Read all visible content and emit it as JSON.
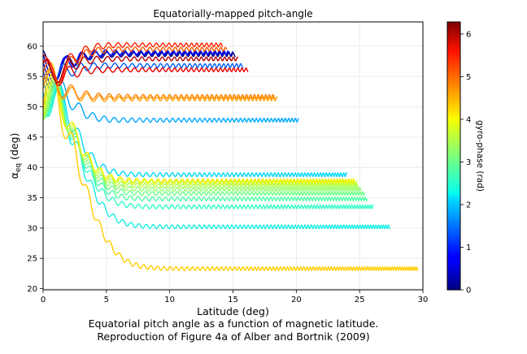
{
  "chart_data": {
    "type": "line",
    "title": "Equatorially-mapped pitch-angle",
    "xlabel": "Latitude (deg)",
    "ylabel_main": "α",
    "ylabel_sub": "eq",
    "ylabel_tail": " (deg)",
    "xlim": [
      0,
      30
    ],
    "ylim": [
      19.8,
      64
    ],
    "xticks": [
      "0",
      "5",
      "10",
      "15",
      "20",
      "25",
      "30"
    ],
    "yticks": [
      "20",
      "25",
      "30",
      "35",
      "40",
      "45",
      "50",
      "55",
      "60"
    ],
    "grid": true,
    "colorbar": {
      "label": "gyro-phase (rad)",
      "range": [
        0,
        6.283
      ],
      "ticks": [
        "0",
        "1",
        "2",
        "3",
        "4",
        "5",
        "6"
      ],
      "colormap": "jet"
    },
    "series": [
      {
        "phase": 0.1,
        "color": "#00007f",
        "x0": 0.0,
        "y0": 55.8,
        "yf": 58.6,
        "xend": 15.2,
        "amp": 0.3
      },
      {
        "phase": 0.5,
        "color": "#0000c8",
        "x0": 0.0,
        "y0": 55.5,
        "yf": 58.8,
        "xend": 15.0,
        "amp": 0.3
      },
      {
        "phase": 0.9,
        "color": "#0010ff",
        "x0": 0.0,
        "y0": 55.2,
        "yf": 59.0,
        "xend": 14.6,
        "amp": 0.3
      },
      {
        "phase": 1.25,
        "color": "#0060ff",
        "x0": 0.0,
        "y0": 54.9,
        "yf": 56.8,
        "xend": 15.8,
        "amp": 0.3
      },
      {
        "phase": 1.6,
        "color": "#00a8ff",
        "x0": 0.0,
        "y0": 54.5,
        "yf": 47.8,
        "xend": 20.2,
        "amp": 0.3
      },
      {
        "phase": 1.9,
        "color": "#00d8f8",
        "x0": 0.0,
        "y0": 54.2,
        "yf": 38.8,
        "xend": 24.0,
        "amp": 0.3
      },
      {
        "phase": 2.1,
        "color": "#18f0e0",
        "x0": 0.0,
        "y0": 54.0,
        "yf": 30.2,
        "xend": 27.4,
        "amp": 0.3
      },
      {
        "phase": 2.35,
        "color": "#30ffc6",
        "x0": 0.0,
        "y0": 53.8,
        "yf": 33.5,
        "xend": 26.1,
        "amp": 0.3
      },
      {
        "phase": 2.6,
        "color": "#50ffa6",
        "x0": 0.0,
        "y0": 53.6,
        "yf": 34.8,
        "xend": 25.6,
        "amp": 0.3
      },
      {
        "phase": 2.85,
        "color": "#70ff86",
        "x0": 0.0,
        "y0": 53.5,
        "yf": 35.7,
        "xend": 25.4,
        "amp": 0.3
      },
      {
        "phase": 3.1,
        "color": "#90ff66",
        "x0": 0.0,
        "y0": 53.4,
        "yf": 36.4,
        "xend": 25.1,
        "amp": 0.3
      },
      {
        "phase": 3.35,
        "color": "#b0ff46",
        "x0": 0.0,
        "y0": 53.3,
        "yf": 37.0,
        "xend": 24.9,
        "amp": 0.3
      },
      {
        "phase": 3.6,
        "color": "#d0ff26",
        "x0": 0.0,
        "y0": 53.3,
        "yf": 37.5,
        "xend": 24.8,
        "amp": 0.3
      },
      {
        "phase": 3.9,
        "color": "#f0f000",
        "x0": 0.0,
        "y0": 53.3,
        "yf": 37.8,
        "xend": 24.6,
        "amp": 0.3
      },
      {
        "phase": 4.2,
        "color": "#ffce00",
        "x0": 0.0,
        "y0": 53.4,
        "yf": 23.3,
        "xend": 29.6,
        "amp": 0.3
      },
      {
        "phase": 4.55,
        "color": "#ffa000",
        "x0": 0.0,
        "y0": 53.6,
        "yf": 51.3,
        "xend": 18.5,
        "amp": 0.3
      },
      {
        "phase": 4.8,
        "color": "#ff8400",
        "x0": 0.0,
        "y0": 53.8,
        "yf": 51.7,
        "xend": 18.3,
        "amp": 0.3
      },
      {
        "phase": 5.1,
        "color": "#ff5a00",
        "x0": 0.0,
        "y0": 54.1,
        "yf": 59.5,
        "xend": 14.5,
        "amp": 0.3
      },
      {
        "phase": 5.4,
        "color": "#ff2000",
        "x0": 0.0,
        "y0": 54.5,
        "yf": 60.2,
        "xend": 14.2,
        "amp": 0.3
      },
      {
        "phase": 5.65,
        "color": "#e40000",
        "x0": 0.0,
        "y0": 54.8,
        "yf": 56.1,
        "xend": 16.2,
        "amp": 0.3
      },
      {
        "phase": 5.95,
        "color": "#b00000",
        "x0": 0.0,
        "y0": 55.2,
        "yf": 57.9,
        "xend": 15.4,
        "amp": 0.3
      }
    ]
  },
  "caption": {
    "line1": "Equatorial pitch angle as a function of magnetic latitude.",
    "line2": "Reproduction of Figure 4a of Alber and Bortnik (2009)"
  }
}
